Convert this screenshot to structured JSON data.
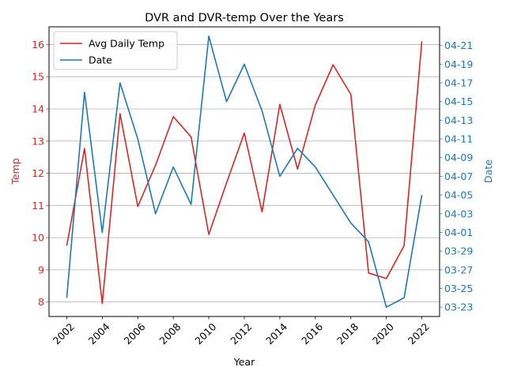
{
  "chart_data": {
    "type": "line",
    "title": "DVR and DVR-temp Over the Years",
    "xlabel": "Year",
    "ylabel_left": "Temp",
    "ylabel_right": "Date",
    "colors": {
      "left": "#d62728",
      "right": "#1f77b4"
    },
    "x": [
      2002,
      2003,
      2004,
      2005,
      2006,
      2007,
      2008,
      2009,
      2010,
      2011,
      2012,
      2013,
      2014,
      2015,
      2016,
      2017,
      2018,
      2019,
      2020,
      2021,
      2022
    ],
    "x_ticks": [
      2002,
      2004,
      2006,
      2008,
      2010,
      2012,
      2014,
      2016,
      2018,
      2020,
      2022
    ],
    "xlim": [
      2001.0,
      2023.0
    ],
    "left_axis": {
      "ylim": [
        7.55,
        16.55
      ],
      "ticks": [
        8,
        9,
        10,
        11,
        12,
        13,
        14,
        15,
        16
      ],
      "grid": true
    },
    "right_axis": {
      "ylim": [
        -1.0,
        30.0
      ],
      "ticks": [
        0,
        2,
        4,
        6,
        8,
        10,
        12,
        14,
        16,
        18,
        20,
        22,
        24,
        26,
        28
      ],
      "tick_labels": [
        "03-23",
        "03-25",
        "03-27",
        "03-29",
        "04-01",
        "04-03",
        "04-05",
        "04-07",
        "04-09",
        "04-11",
        "04-13",
        "04-15",
        "04-17",
        "04-19",
        "04-21"
      ]
    },
    "series": [
      {
        "name": "Avg Daily Temp",
        "axis": "left",
        "color": "#d62728",
        "values": [
          9.75,
          12.77,
          7.95,
          13.85,
          10.97,
          12.25,
          13.76,
          13.13,
          10.1,
          11.7,
          13.25,
          10.8,
          14.14,
          12.13,
          14.12,
          15.37,
          14.45,
          8.9,
          8.73,
          9.75,
          16.1
        ]
      },
      {
        "name": "Date",
        "axis": "right",
        "color": "#1f77b4",
        "values": [
          1,
          23,
          8,
          24,
          18,
          10,
          15,
          11,
          29,
          22,
          26,
          21,
          14,
          17,
          15,
          12,
          9,
          7,
          0,
          1,
          12
        ]
      }
    ],
    "legend": {
      "position": "upper-left",
      "entries": [
        "Avg Daily Temp",
        "Date"
      ]
    }
  }
}
